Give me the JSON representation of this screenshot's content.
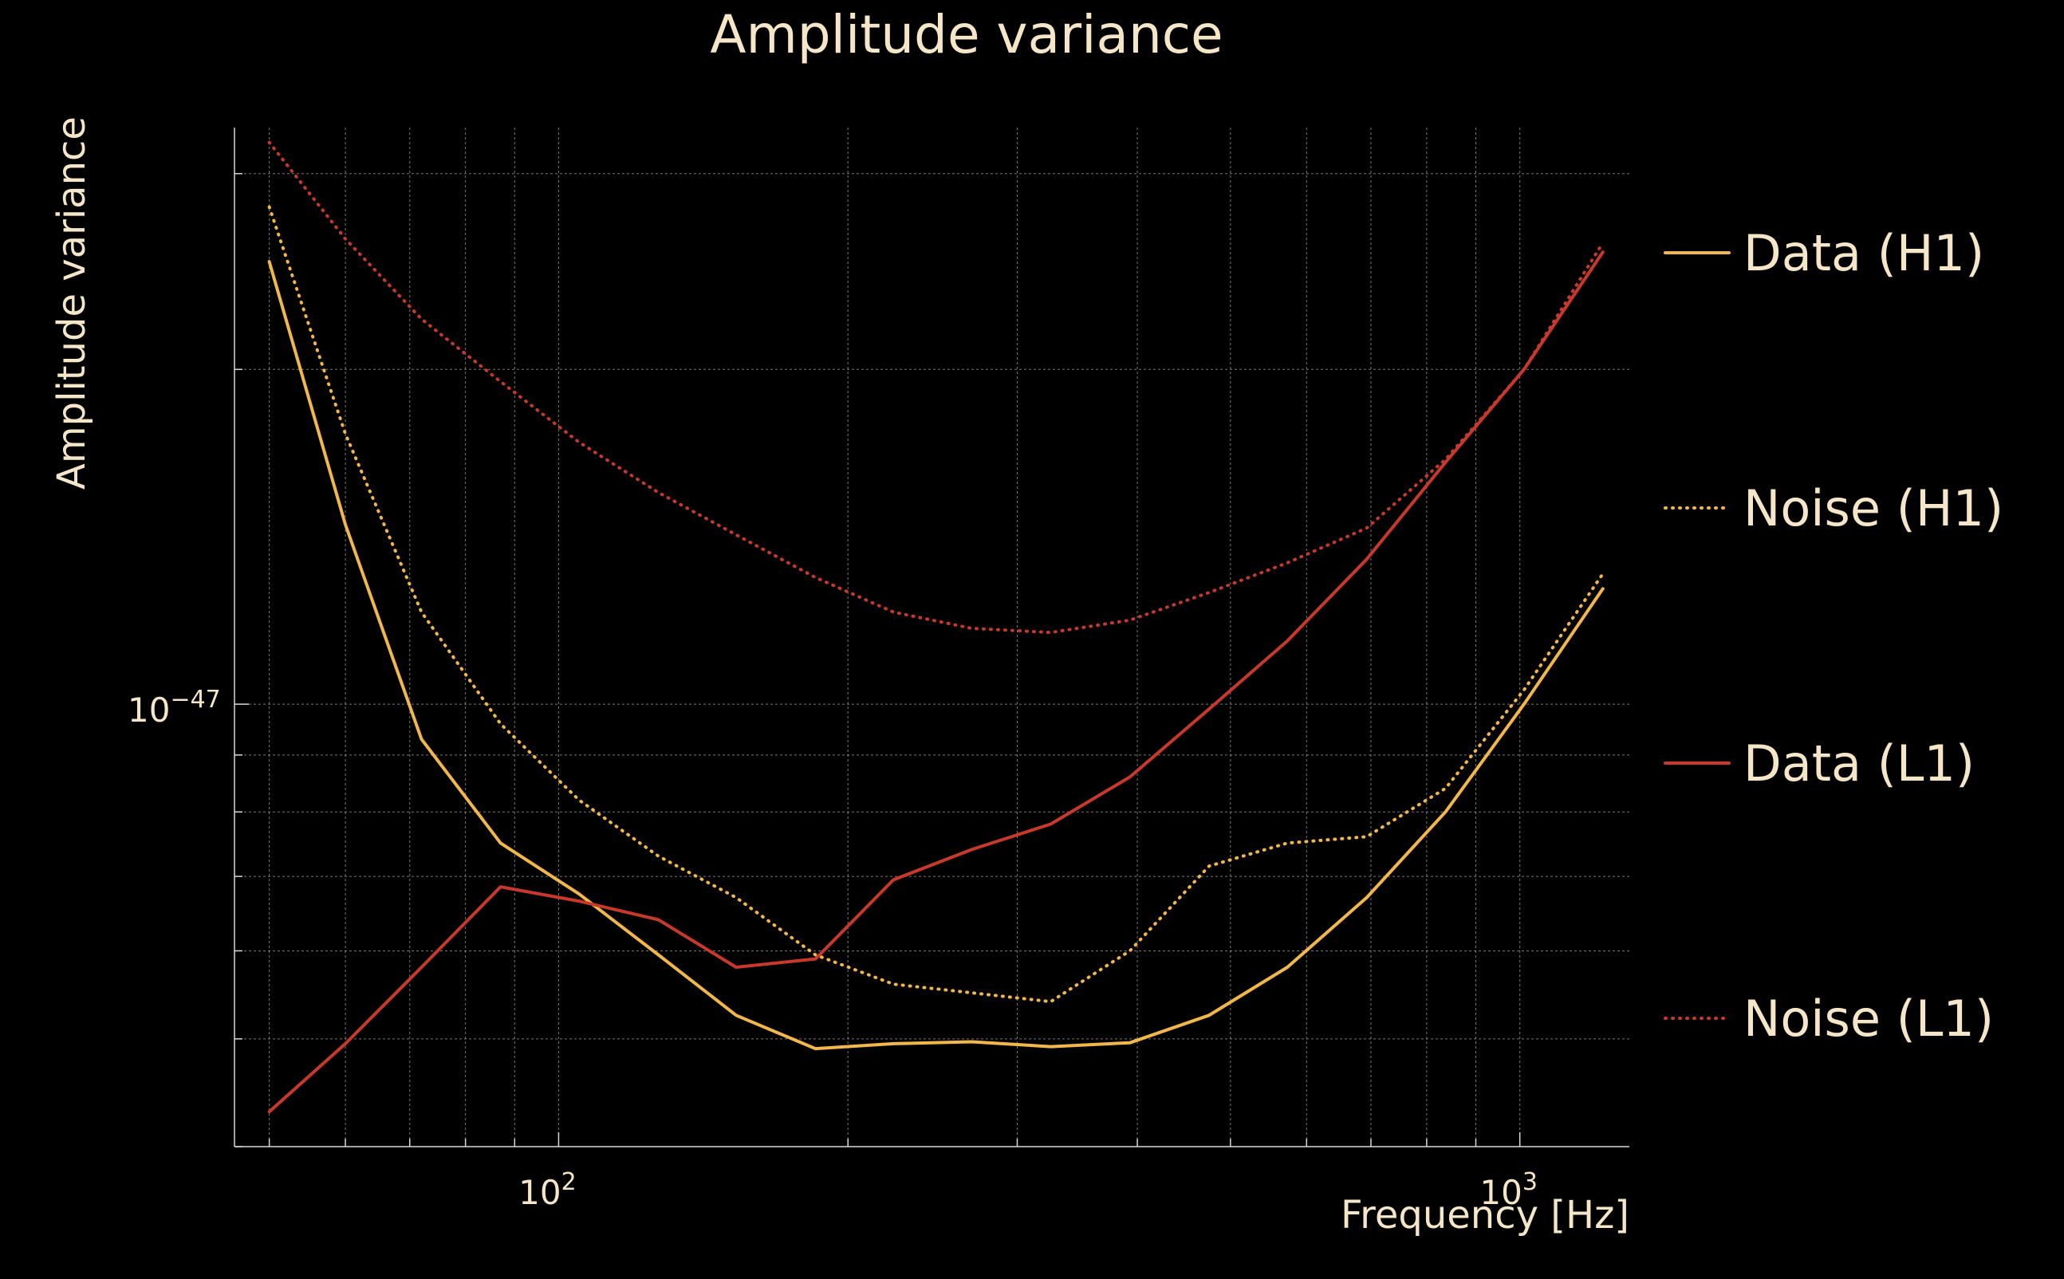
{
  "chart_data": {
    "type": "line",
    "title": "Amplitude variance",
    "xlabel": "Frequency [Hz]",
    "ylabel": "Amplitude variance",
    "xscale": "log",
    "yscale": "log",
    "xlim": [
      46,
      1300
    ],
    "ylim": [
      4e-48,
      3.3e-47
    ],
    "x_tick_labels": [
      {
        "value": 100,
        "mantissa": "10",
        "exponent": "2"
      },
      {
        "value": 1000,
        "mantissa": "10",
        "exponent": "3"
      }
    ],
    "y_tick_labels": [
      {
        "value": 1e-47,
        "mantissa": "10",
        "exponent": "−47"
      }
    ],
    "grid": true,
    "legend_position": "right",
    "colors": {
      "background": "#000000",
      "text": "#f5e6c8",
      "grid": "#d8d8d8",
      "h1": "#f2b74a",
      "l1": "#c8392b"
    },
    "x": [
      50,
      60,
      72,
      87,
      105,
      127,
      153,
      185,
      223,
      269,
      325,
      393,
      475,
      573,
      693,
      837,
      1010,
      1220
    ],
    "series": [
      {
        "name": "Data (H1)",
        "color": "#f2b74a",
        "dash": "solid",
        "values": [
          2.5e-47,
          1.45e-47,
          9.3e-48,
          7.5e-48,
          6.75e-48,
          5.95e-48,
          5.25e-48,
          4.9e-48,
          4.95e-48,
          4.97e-48,
          4.92e-48,
          4.96e-48,
          5.25e-48,
          5.8e-48,
          6.7e-48,
          8e-48,
          1e-47,
          1.27e-47
        ]
      },
      {
        "name": "Noise (H1)",
        "color": "#f2b74a",
        "dash": "dotted",
        "values": [
          2.8e-47,
          1.75e-47,
          1.21e-47,
          9.6e-48,
          8.2e-48,
          7.3e-48,
          6.7e-48,
          5.95e-48,
          5.6e-48,
          5.5e-48,
          5.4e-48,
          6e-48,
          7.15e-48,
          7.5e-48,
          7.6e-48,
          8.4e-48,
          1.03e-47,
          1.31e-47
        ]
      },
      {
        "name": "Data (L1)",
        "color": "#c8392b",
        "dash": "solid",
        "values": [
          4.3e-48,
          4.95e-48,
          5.8e-48,
          6.85e-48,
          6.65e-48,
          6.4e-48,
          5.8e-48,
          5.9e-48,
          6.95e-48,
          7.4e-48,
          7.8e-48,
          8.6e-48,
          9.9e-48,
          1.14e-47,
          1.35e-47,
          1.65e-47,
          2e-47,
          2.55e-47
        ]
      },
      {
        "name": "Noise (L1)",
        "color": "#c8392b",
        "dash": "dotted",
        "values": [
          3.2e-47,
          2.62e-47,
          2.22e-47,
          1.95e-47,
          1.72e-47,
          1.55e-47,
          1.42e-47,
          1.3e-47,
          1.21e-47,
          1.17e-47,
          1.16e-47,
          1.19e-47,
          1.26e-47,
          1.34e-47,
          1.44e-47,
          1.66e-47,
          2e-47,
          2.6e-47
        ]
      }
    ]
  }
}
